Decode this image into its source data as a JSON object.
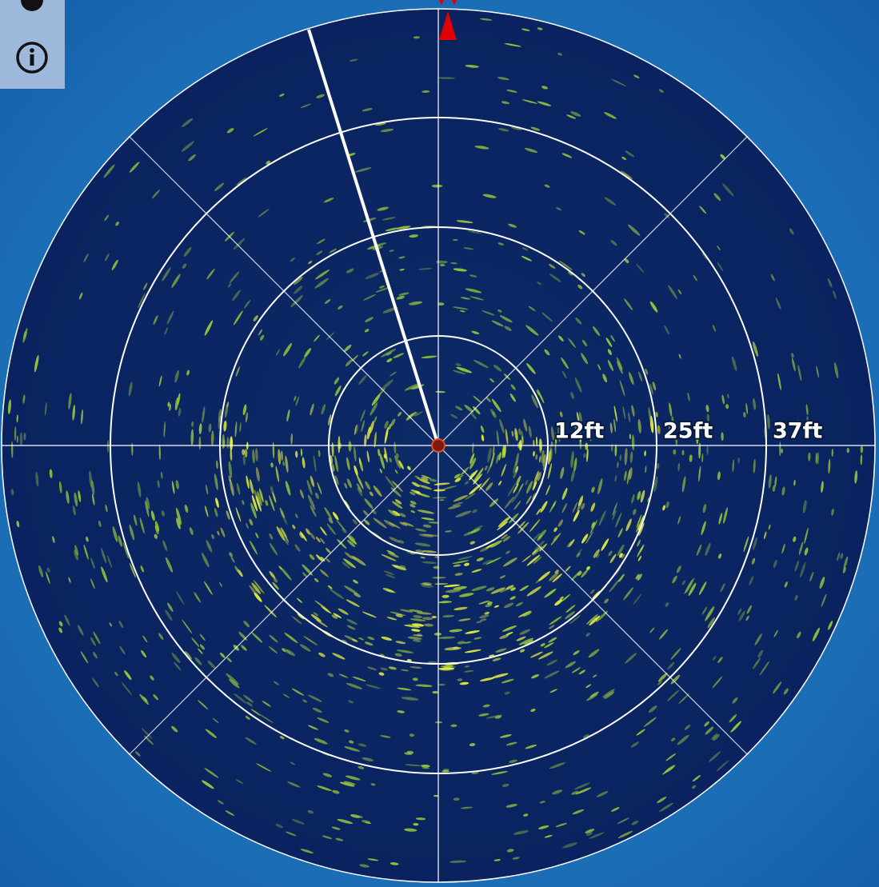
{
  "range_rings": [
    "12ft",
    "25ft",
    "37ft"
  ]
}
